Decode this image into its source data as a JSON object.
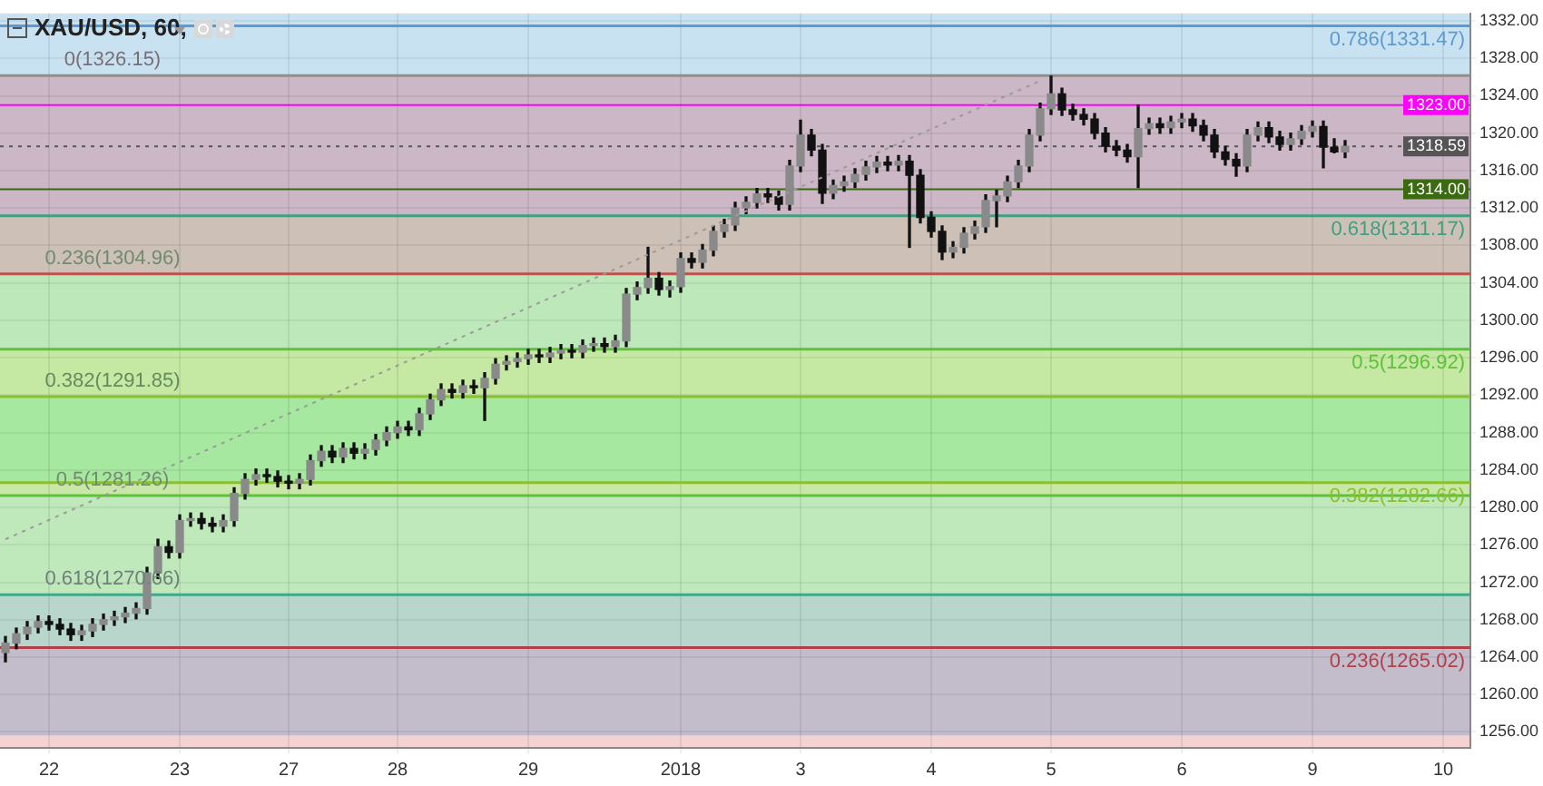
{
  "chart_data": {
    "type": "candlestick",
    "title": "XAU/USD, 60,",
    "color": "#111111",
    "colors": [
      "#8a8a8a",
      "#8a8a8a",
      "#8a8a8a",
      "#8a8a8a",
      "#111111",
      "#111111",
      "#111111",
      "#8a8a8a",
      "#8a8a8a",
      "#8a8a8a",
      "#8a8a8a",
      "#8a8a8a",
      "#8a8a8a",
      "#8a8a8a",
      "#8a8a8a",
      "#111111",
      "#8a8a8a",
      "#8a8a8a",
      "#111111",
      "#111111",
      "#8a8a8a",
      "#8a8a8a",
      "#8a8a8a",
      "#8a8a8a",
      "#111111",
      "#111111",
      "#111111",
      "#8a8a8a",
      "#8a8a8a",
      "#8a8a8a",
      "#111111",
      "#8a8a8a",
      "#111111",
      "#8a8a8a",
      "#8a8a8a",
      "#8a8a8a",
      "#8a8a8a",
      "#111111",
      "#8a8a8a",
      "#8a8a8a",
      "#8a8a8a",
      "#111111",
      "#8a8a8a",
      "#111111",
      "#8a8a8a",
      "#8a8a8a",
      "#8a8a8a",
      "#8a8a8a",
      "#8a8a8a",
      "#111111",
      "#8a8a8a",
      "#8a8a8a",
      "#111111",
      "#8a8a8a",
      "#8a8a8a",
      "#111111",
      "#8a8a8a",
      "#8a8a8a",
      "#8a8a8a",
      "#8a8a8a",
      "#111111",
      "#8a8a8a",
      "#8a8a8a",
      "#111111",
      "#8a8a8a",
      "#8a8a8a",
      "#8a8a8a",
      "#8a8a8a",
      "#8a8a8a",
      "#8a8a8a",
      "#111111",
      "#111111",
      "#8a8a8a",
      "#8a8a8a",
      "#111111",
      "#111111",
      "#8a8a8a",
      "#8a8a8a",
      "#8a8a8a",
      "#8a8a8a",
      "#8a8a8a",
      "#111111",
      "#8a8a8a",
      "#111111",
      "#111111",
      "#111111",
      "#111111",
      "#8a8a8a",
      "#8a8a8a",
      "#8a8a8a",
      "#8a8a8a",
      "#8a8a8a",
      "#8a8a8a",
      "#8a8a8a",
      "#8a8a8a",
      "#8a8a8a",
      "#8a8a8a",
      "#111111",
      "#111111",
      "#111111",
      "#111111",
      "#111111",
      "#111111",
      "#111111",
      "#8a8a8a",
      "#8a8a8a",
      "#111111",
      "#8a8a8a",
      "#8a8a8a",
      "#111111",
      "#111111",
      "#111111",
      "#111111",
      "#111111",
      "#8a8a8a",
      "#8a8a8a",
      "#111111",
      "#111111",
      "#8a8a8a",
      "#8a8a8a",
      "#8a8a8a",
      "#111111",
      "#111111",
      "#8a8a8a",
      null,
      null,
      null,
      null,
      null,
      null,
      null,
      null,
      null,
      null,
      null
    ],
    "categories": [
      null,
      null,
      null,
      null,
      "22",
      null,
      null,
      null,
      null,
      null,
      null,
      null,
      null,
      null,
      null,
      null,
      "23",
      null,
      null,
      null,
      null,
      null,
      null,
      null,
      null,
      null,
      "27",
      null,
      null,
      null,
      null,
      null,
      null,
      null,
      null,
      null,
      "28",
      null,
      null,
      null,
      null,
      null,
      null,
      null,
      null,
      null,
      null,
      null,
      "29",
      null,
      null,
      null,
      null,
      null,
      null,
      null,
      null,
      null,
      null,
      null,
      null,
      null,
      "2018",
      null,
      null,
      null,
      null,
      null,
      null,
      null,
      null,
      null,
      null,
      "3",
      null,
      null,
      null,
      null,
      null,
      null,
      null,
      null,
      null,
      null,
      null,
      "4",
      null,
      null,
      null,
      null,
      null,
      null,
      null,
      null,
      null,
      null,
      "5",
      null,
      null,
      null,
      null,
      null,
      null,
      null,
      null,
      null,
      null,
      null,
      "6",
      null,
      null,
      null,
      null,
      null,
      null,
      null,
      null,
      null,
      null,
      null,
      "9",
      null,
      null,
      null,
      null,
      null,
      null,
      null,
      null,
      null,
      null,
      null,
      "10",
      null,
      null
    ],
    "ohlc": [
      [
        1264.5,
        1266.2,
        1263.5,
        1265.5
      ],
      [
        1265.5,
        1267.1,
        1264.9,
        1266.5
      ],
      [
        1266.5,
        1267.8,
        1265.9,
        1267.2
      ],
      [
        1267.2,
        1268.4,
        1266.6,
        1267.8
      ],
      [
        1267.8,
        1268.4,
        1266.9,
        1267.5
      ],
      [
        1267.5,
        1268.1,
        1266.4,
        1267.0
      ],
      [
        1267.0,
        1267.6,
        1265.8,
        1266.4
      ],
      [
        1266.4,
        1267.4,
        1265.8,
        1266.8
      ],
      [
        1266.8,
        1268.1,
        1266.2,
        1267.5
      ],
      [
        1267.5,
        1268.6,
        1266.9,
        1268.0
      ],
      [
        1268.0,
        1268.9,
        1267.4,
        1268.3
      ],
      [
        1268.3,
        1269.3,
        1267.7,
        1268.7
      ],
      [
        1268.7,
        1269.8,
        1268.1,
        1269.2
      ],
      [
        1269.2,
        1273.6,
        1268.6,
        1273.0
      ],
      [
        1273.0,
        1276.6,
        1272.4,
        1275.8
      ],
      [
        1275.8,
        1276.4,
        1274.6,
        1275.2
      ],
      [
        1275.2,
        1279.2,
        1274.6,
        1278.6
      ],
      [
        1278.6,
        1279.4,
        1278.0,
        1278.8
      ],
      [
        1278.8,
        1279.4,
        1277.7,
        1278.3
      ],
      [
        1278.3,
        1278.9,
        1277.4,
        1278.0
      ],
      [
        1278.0,
        1279.2,
        1277.4,
        1278.6
      ],
      [
        1278.6,
        1282.1,
        1278.0,
        1281.5
      ],
      [
        1281.5,
        1283.6,
        1280.9,
        1283.0
      ],
      [
        1283.0,
        1284.1,
        1282.4,
        1283.5
      ],
      [
        1283.5,
        1284.1,
        1282.7,
        1283.3
      ],
      [
        1283.3,
        1283.9,
        1282.2,
        1282.8
      ],
      [
        1282.8,
        1283.4,
        1282.0,
        1282.6
      ],
      [
        1282.6,
        1283.6,
        1282.0,
        1283.0
      ],
      [
        1283.0,
        1285.6,
        1282.4,
        1285.0
      ],
      [
        1285.0,
        1286.6,
        1284.4,
        1286.0
      ],
      [
        1286.0,
        1286.6,
        1284.8,
        1285.4
      ],
      [
        1285.4,
        1286.9,
        1284.8,
        1286.3
      ],
      [
        1286.3,
        1286.9,
        1285.2,
        1285.8
      ],
      [
        1285.8,
        1286.8,
        1285.2,
        1286.2
      ],
      [
        1286.2,
        1287.8,
        1285.6,
        1287.2
      ],
      [
        1287.2,
        1288.6,
        1286.6,
        1288.0
      ],
      [
        1288.0,
        1289.2,
        1287.4,
        1288.6
      ],
      [
        1288.6,
        1289.2,
        1287.7,
        1288.3
      ],
      [
        1288.3,
        1290.6,
        1287.7,
        1290.0
      ],
      [
        1290.0,
        1292.1,
        1289.4,
        1291.5
      ],
      [
        1291.5,
        1293.2,
        1290.9,
        1292.6
      ],
      [
        1292.6,
        1293.2,
        1291.7,
        1292.3
      ],
      [
        1292.3,
        1293.6,
        1291.7,
        1293.0
      ],
      [
        1293.0,
        1293.6,
        1292.2,
        1292.8
      ],
      [
        1292.8,
        1294.4,
        1289.3,
        1293.8
      ],
      [
        1293.8,
        1295.9,
        1293.2,
        1295.3
      ],
      [
        1295.3,
        1296.2,
        1294.7,
        1295.6
      ],
      [
        1295.6,
        1296.5,
        1295.0,
        1295.9
      ],
      [
        1295.9,
        1296.9,
        1295.3,
        1296.3
      ],
      [
        1296.3,
        1296.9,
        1295.5,
        1296.1
      ],
      [
        1296.1,
        1297.1,
        1295.5,
        1296.5
      ],
      [
        1296.5,
        1297.4,
        1295.9,
        1296.8
      ],
      [
        1296.8,
        1297.4,
        1296.0,
        1296.6
      ],
      [
        1296.6,
        1297.9,
        1296.0,
        1297.3
      ],
      [
        1297.3,
        1298.1,
        1296.7,
        1297.5
      ],
      [
        1297.5,
        1298.1,
        1296.6,
        1297.2
      ],
      [
        1297.2,
        1298.4,
        1296.6,
        1297.8
      ],
      [
        1297.8,
        1303.4,
        1297.2,
        1302.8
      ],
      [
        1302.8,
        1304.1,
        1302.2,
        1303.5
      ],
      [
        1303.5,
        1307.8,
        1302.9,
        1304.5
      ],
      [
        1304.5,
        1305.1,
        1302.7,
        1303.3
      ],
      [
        1303.3,
        1304.2,
        1302.5,
        1303.6
      ],
      [
        1303.6,
        1307.2,
        1303.0,
        1306.6
      ],
      [
        1306.6,
        1307.2,
        1305.6,
        1306.2
      ],
      [
        1306.2,
        1308.1,
        1305.6,
        1307.5
      ],
      [
        1307.5,
        1310.1,
        1306.9,
        1309.5
      ],
      [
        1309.5,
        1310.8,
        1308.9,
        1310.2
      ],
      [
        1310.2,
        1312.6,
        1309.6,
        1312.0
      ],
      [
        1312.0,
        1313.2,
        1311.4,
        1312.6
      ],
      [
        1312.6,
        1314.1,
        1312.0,
        1313.5
      ],
      [
        1313.5,
        1314.1,
        1312.6,
        1313.2
      ],
      [
        1313.2,
        1313.8,
        1311.8,
        1312.4
      ],
      [
        1312.4,
        1317.1,
        1311.8,
        1316.5
      ],
      [
        1316.5,
        1321.4,
        1315.9,
        1319.8
      ],
      [
        1319.8,
        1320.4,
        1317.6,
        1318.2
      ],
      [
        1318.2,
        1318.8,
        1312.5,
        1313.6
      ],
      [
        1313.6,
        1315.0,
        1313.0,
        1314.4
      ],
      [
        1314.4,
        1315.4,
        1313.8,
        1314.8
      ],
      [
        1314.8,
        1316.2,
        1314.2,
        1315.6
      ],
      [
        1315.6,
        1317.0,
        1315.0,
        1316.4
      ],
      [
        1316.4,
        1317.5,
        1315.8,
        1316.9
      ],
      [
        1316.9,
        1317.5,
        1316.0,
        1316.6
      ],
      [
        1316.6,
        1317.6,
        1316.0,
        1317.0
      ],
      [
        1317.0,
        1317.6,
        1307.8,
        1315.5
      ],
      [
        1315.5,
        1316.1,
        1310.4,
        1311.0
      ],
      [
        1311.0,
        1311.6,
        1308.9,
        1309.5
      ],
      [
        1309.5,
        1310.1,
        1306.5,
        1307.3
      ],
      [
        1307.3,
        1308.4,
        1306.7,
        1307.8
      ],
      [
        1307.8,
        1309.9,
        1307.2,
        1309.3
      ],
      [
        1309.3,
        1310.6,
        1308.7,
        1310.0
      ],
      [
        1310.0,
        1313.4,
        1309.4,
        1312.8
      ],
      [
        1312.8,
        1313.9,
        1310.0,
        1313.3
      ],
      [
        1313.3,
        1315.4,
        1312.7,
        1314.8
      ],
      [
        1314.8,
        1317.1,
        1314.2,
        1316.5
      ],
      [
        1316.5,
        1320.4,
        1315.9,
        1319.8
      ],
      [
        1319.8,
        1323.2,
        1319.2,
        1322.6
      ],
      [
        1322.6,
        1326.1,
        1322.0,
        1324.2
      ],
      [
        1324.2,
        1324.8,
        1321.9,
        1322.5
      ],
      [
        1322.5,
        1323.1,
        1321.4,
        1322.0
      ],
      [
        1322.0,
        1322.6,
        1320.9,
        1321.5
      ],
      [
        1321.5,
        1322.1,
        1319.4,
        1320.0
      ],
      [
        1320.0,
        1320.6,
        1318.0,
        1318.6
      ],
      [
        1318.6,
        1319.2,
        1317.6,
        1318.2
      ],
      [
        1318.2,
        1318.8,
        1316.9,
        1317.5
      ],
      [
        1317.5,
        1323.0,
        1314.2,
        1320.5
      ],
      [
        1320.5,
        1321.6,
        1319.9,
        1321.0
      ],
      [
        1321.0,
        1321.6,
        1320.0,
        1320.6
      ],
      [
        1320.6,
        1321.8,
        1320.0,
        1321.2
      ],
      [
        1321.2,
        1322.1,
        1320.6,
        1321.5
      ],
      [
        1321.5,
        1322.1,
        1320.2,
        1320.8
      ],
      [
        1320.8,
        1321.4,
        1319.2,
        1319.8
      ],
      [
        1319.8,
        1320.4,
        1317.4,
        1318.0
      ],
      [
        1318.0,
        1318.6,
        1316.6,
        1317.2
      ],
      [
        1317.2,
        1317.8,
        1315.4,
        1316.5
      ],
      [
        1316.5,
        1320.4,
        1315.9,
        1319.8
      ],
      [
        1319.8,
        1321.2,
        1319.2,
        1320.6
      ],
      [
        1320.6,
        1321.2,
        1319.0,
        1319.6
      ],
      [
        1319.6,
        1320.2,
        1318.2,
        1318.8
      ],
      [
        1318.8,
        1320.0,
        1318.2,
        1319.4
      ],
      [
        1319.4,
        1320.8,
        1318.8,
        1320.2
      ],
      [
        1320.2,
        1321.3,
        1319.6,
        1320.7
      ],
      [
        1320.7,
        1321.3,
        1316.3,
        1318.5
      ],
      [
        1318.5,
        1319.4,
        1317.9,
        1318.0
      ],
      [
        1318.0,
        1319.2,
        1317.4,
        1318.59
      ],
      null,
      null,
      null,
      null,
      null,
      null,
      null,
      null,
      null,
      null,
      null
    ],
    "series": [
      {
        "type": "line",
        "color": "#9a9a9a",
        "line_style": "dotted",
        "values": [
          1276.6,
          null,
          null,
          null,
          null,
          null,
          null,
          null,
          null,
          null,
          null,
          null,
          null,
          null,
          null,
          null,
          null,
          null,
          null,
          null,
          null,
          null,
          null,
          null,
          null,
          null,
          null,
          null,
          null,
          null,
          null,
          null,
          null,
          null,
          null,
          null,
          null,
          null,
          null,
          null,
          null,
          null,
          null,
          null,
          null,
          null,
          null,
          null,
          null,
          null,
          null,
          null,
          null,
          null,
          null,
          null,
          null,
          null,
          null,
          null,
          null,
          null,
          null,
          null,
          null,
          null,
          null,
          null,
          null,
          null,
          null,
          null,
          null,
          null,
          null,
          null,
          null,
          null,
          null,
          null,
          null,
          null,
          null,
          null,
          null,
          null,
          null,
          null,
          null,
          null,
          null,
          null,
          null,
          null,
          null,
          1325.6,
          null,
          null,
          null,
          null,
          null,
          null,
          null,
          null,
          null,
          null,
          null,
          null,
          null,
          null,
          null,
          null,
          null,
          null,
          null,
          null,
          null,
          null,
          null,
          null,
          null,
          null,
          null,
          null,
          null,
          null,
          null,
          null,
          null,
          null,
          null,
          null,
          null,
          null,
          null
        ]
      }
    ],
    "ylim": [
      1254.3,
      1332.8
    ],
    "yticks": [
      {
        "value": 1256,
        "label": "1256.00"
      },
      {
        "value": 1260,
        "label": "1260.00"
      },
      {
        "value": 1264,
        "label": "1264.00"
      },
      {
        "value": 1268,
        "label": "1268.00"
      },
      {
        "value": 1272,
        "label": "1272.00"
      },
      {
        "value": 1276,
        "label": "1276.00"
      },
      {
        "value": 1280,
        "label": "1280.00"
      },
      {
        "value": 1284,
        "label": "1284.00"
      },
      {
        "value": 1288,
        "label": "1288.00"
      },
      {
        "value": 1292,
        "label": "1292.00"
      },
      {
        "value": 1296,
        "label": "1296.00"
      },
      {
        "value": 1300,
        "label": "1300.00"
      },
      {
        "value": 1304,
        "label": "1304.00"
      },
      {
        "value": 1308,
        "label": "1308.00"
      },
      {
        "value": 1312,
        "label": "1312.00"
      },
      {
        "value": 1316,
        "label": "1316.00"
      },
      {
        "value": 1320,
        "label": "1320.00"
      },
      {
        "value": 1324,
        "label": "1324.00"
      },
      {
        "value": 1328,
        "label": "1328.00"
      },
      {
        "value": 1332,
        "label": "1332.00"
      }
    ],
    "grid": true,
    "legend": false,
    "bands": [
      {
        "axis": "y",
        "from": 1254.3,
        "to": 1255.6,
        "color": "#f4d2d2"
      },
      {
        "axis": "y",
        "from": 1255.6,
        "to": 1265.02,
        "color": "#c3bccb"
      },
      {
        "axis": "y",
        "from": 1265.02,
        "to": 1270.66,
        "color": "#b9d6cc",
        "label": "0.618(1270.66)"
      },
      {
        "axis": "y",
        "from": 1270.66,
        "to": 1281.26,
        "color": "#bfe8bb",
        "label": "0.5(1281.26)"
      },
      {
        "axis": "y",
        "from": 1281.26,
        "to": 1282.66,
        "color": "#c9e8a8"
      },
      {
        "axis": "y",
        "from": 1282.66,
        "to": 1291.85,
        "color": "#a6e8a0",
        "label": "0.382(1291.85)"
      },
      {
        "axis": "y",
        "from": 1291.85,
        "to": 1296.92,
        "color": "#c5e8a2"
      },
      {
        "axis": "y",
        "from": 1296.92,
        "to": 1304.96,
        "color": "#bde8b9",
        "label": "0.236(1304.96)"
      },
      {
        "axis": "y",
        "from": 1304.96,
        "to": 1311.17,
        "color": "#cdc1b7"
      },
      {
        "axis": "y",
        "from": 1311.17,
        "to": 1326.15,
        "color": "#cbb7c5",
        "label": "0(1326.15)"
      },
      {
        "axis": "y",
        "from": 1326.15,
        "to": 1332.8,
        "color": "#c9e2f2"
      }
    ],
    "ref_lines": [
      {
        "axis": "y",
        "value": 1331.47,
        "color": "#5b9bd5"
      },
      {
        "axis": "y",
        "value": 1326.15,
        "color": "#8f8f8f"
      },
      {
        "axis": "y",
        "value": 1311.17,
        "color": "#3f9f7f"
      },
      {
        "axis": "y",
        "value": 1304.96,
        "color": "#c0504d"
      },
      {
        "axis": "y",
        "value": 1296.92,
        "color": "#5cc23a"
      },
      {
        "axis": "y",
        "value": 1291.85,
        "color": "#8cbf2f"
      },
      {
        "axis": "y",
        "value": 1282.66,
        "color": "#8cbf2f"
      },
      {
        "axis": "y",
        "value": 1281.26,
        "color": "#5cc23a"
      },
      {
        "axis": "y",
        "value": 1270.66,
        "color": "#3fa88a"
      },
      {
        "axis": "y",
        "value": 1265.02,
        "color": "#b0404a"
      },
      {
        "axis": "y",
        "value": 1323,
        "color": "#ff00ff",
        "label": "1323.00"
      },
      {
        "axis": "y",
        "value": 1318.59,
        "color": "#555555",
        "line_style": "dotted",
        "label": "1318.59"
      },
      {
        "axis": "y",
        "value": 1314,
        "color": "#3a6b10",
        "label": "1314.00"
      }
    ],
    "annotations": [
      {
        "text": "0.786(1331.47)",
        "y": 1331.47
      },
      {
        "text": "0.618(1311.17)",
        "y": 1311.17
      },
      {
        "text": "0.5(1296.92)",
        "y": 1296.92
      },
      {
        "text": "0.382(1282.66)",
        "y": 1282.66
      },
      {
        "text": "0.236(1265.02)",
        "y": 1265.02
      }
    ]
  }
}
